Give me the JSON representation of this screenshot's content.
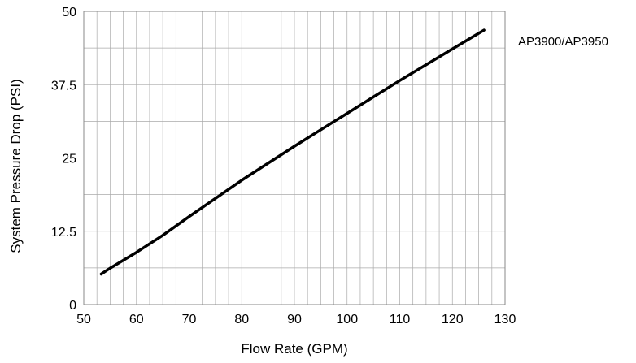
{
  "chart_data": {
    "type": "line",
    "title": "",
    "xlabel": "Flow Rate (GPM)",
    "ylabel": "System Pressure Drop (PSI)",
    "xlim": [
      50,
      130
    ],
    "ylim": [
      0,
      50
    ],
    "x_ticks": [
      "50",
      "60",
      "70",
      "80",
      "90",
      "100",
      "110",
      "120",
      "130"
    ],
    "y_ticks": [
      "0",
      "12.5",
      "25",
      "37.5",
      "50"
    ],
    "grid": true,
    "legend": "right",
    "colors": {
      "line": "#000000",
      "grid": "#aaaaaa",
      "frame": "#888888"
    },
    "series": [
      {
        "name": "AP3900/AP3950",
        "x": [
          53.3,
          55,
          60,
          65,
          70,
          75,
          80,
          85,
          90,
          95,
          100,
          105,
          110,
          115,
          120,
          126
        ],
        "y": [
          5.2,
          6.2,
          8.9,
          11.8,
          15.0,
          18.1,
          21.2,
          24.1,
          27.0,
          29.8,
          32.6,
          35.4,
          38.2,
          40.9,
          43.6,
          46.8
        ]
      }
    ]
  }
}
